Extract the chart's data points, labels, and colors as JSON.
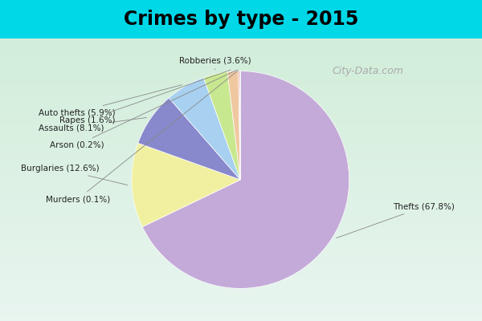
{
  "title": "Crimes by type - 2015",
  "labels": [
    "Thefts",
    "Burglaries",
    "Assaults",
    "Auto thefts",
    "Robberies",
    "Rapes",
    "Arson",
    "Murders"
  ],
  "values": [
    67.8,
    12.6,
    8.1,
    5.9,
    3.6,
    1.6,
    0.2,
    0.1
  ],
  "colors": [
    "#c4aad8",
    "#f0f0a0",
    "#8888cc",
    "#a8d0f0",
    "#c8e890",
    "#f0c8a0",
    "#e8a0a8",
    "#c8e8c8"
  ],
  "background_top": "#00d8e8",
  "background_main_top": "#e8f4f0",
  "background_main_bottom": "#d0ecd8",
  "title_fontsize": 17,
  "watermark": "City-Data.com",
  "label_positions": {
    "Thefts": [
      1.25,
      -0.25,
      "left"
    ],
    "Burglaries": [
      -1.45,
      0.1,
      "right"
    ],
    "Assaults": [
      -1.4,
      0.48,
      "right"
    ],
    "Auto thefts": [
      -1.3,
      0.62,
      "right"
    ],
    "Robberies": [
      -0.05,
      1.1,
      "right"
    ],
    "Rapes": [
      -1.3,
      0.55,
      "right"
    ],
    "Arson": [
      -1.4,
      0.32,
      "right"
    ],
    "Murders": [
      -1.35,
      -0.18,
      "right"
    ]
  }
}
